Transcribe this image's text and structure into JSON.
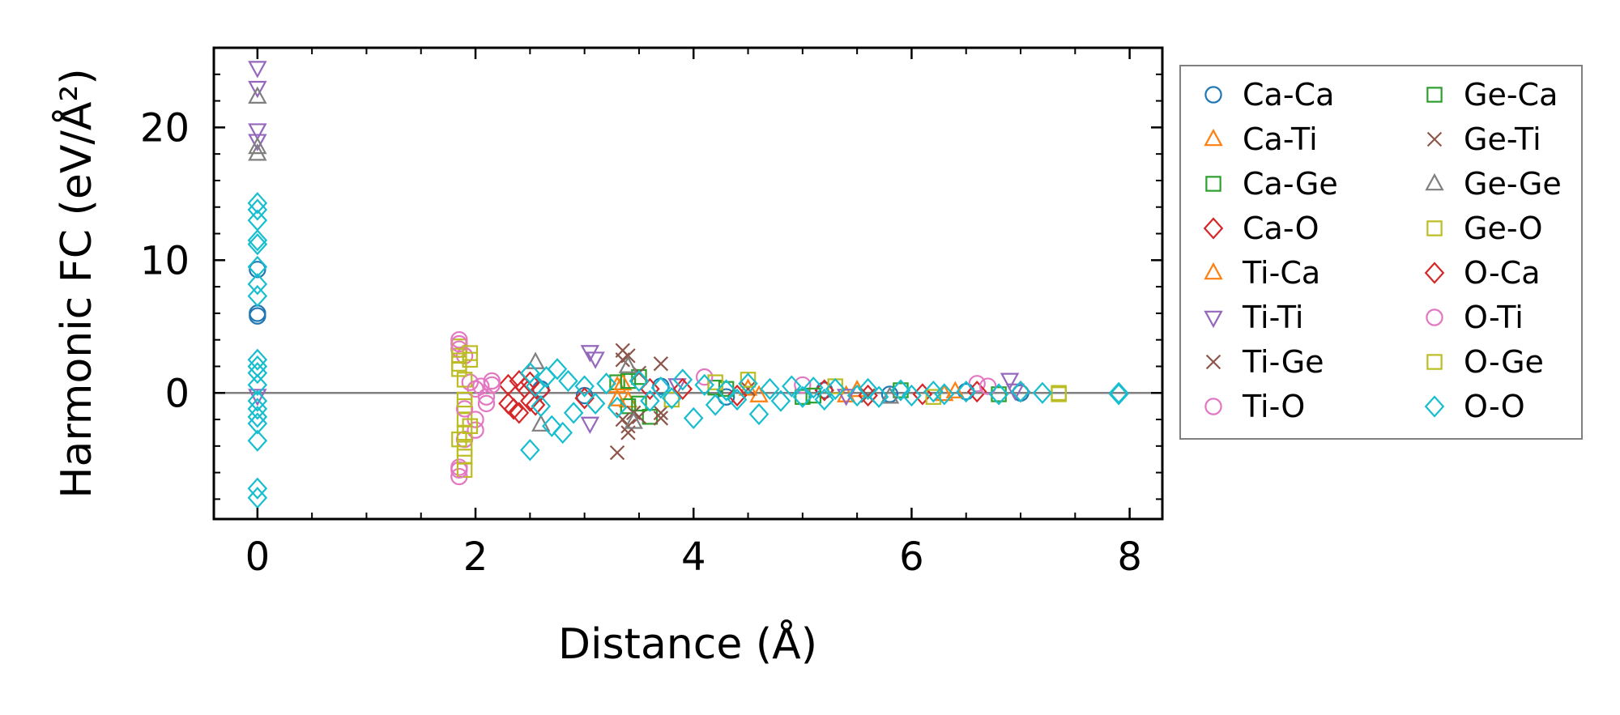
{
  "chart_data": {
    "type": "scatter",
    "title": "",
    "xlabel": "Distance (Å)",
    "ylabel": "Harmonic FC (eV/Å²)",
    "xlim": [
      -0.4,
      8.3
    ],
    "ylim": [
      -9.5,
      26
    ],
    "xticks": [
      0,
      2,
      4,
      6,
      8
    ],
    "xtick_labels": [
      "0",
      "2",
      "4",
      "6",
      "8"
    ],
    "yticks": [
      0,
      10,
      20
    ],
    "ytick_labels": [
      "0",
      "10",
      "20"
    ],
    "grid": false,
    "reference_line_y": 0,
    "legend_position": "outside-right",
    "series": [
      {
        "name": "Ca-Ca",
        "marker": "circle",
        "color": "#1f77b4",
        "points": [
          [
            0,
            9.3
          ],
          [
            0,
            6.0
          ],
          [
            0,
            5.8
          ],
          [
            2.6,
            0.3
          ],
          [
            3.0,
            -0.2
          ],
          [
            3.7,
            0.5
          ],
          [
            4.3,
            -0.3
          ],
          [
            5.2,
            0.2
          ],
          [
            5.8,
            -0.1
          ],
          [
            6.5,
            0.1
          ],
          [
            7.0,
            0.0
          ]
        ]
      },
      {
        "name": "Ca-Ti",
        "marker": "triangle-up",
        "color": "#ff7f0e",
        "points": [
          [
            3.3,
            0.5
          ],
          [
            3.4,
            -0.6
          ],
          [
            4.5,
            0.3
          ],
          [
            5.4,
            -0.2
          ],
          [
            6.4,
            0.1
          ]
        ]
      },
      {
        "name": "Ca-Ge",
        "marker": "square",
        "color": "#2ca02c",
        "points": [
          [
            3.3,
            0.8
          ],
          [
            3.4,
            -1.0
          ],
          [
            3.5,
            1.2
          ],
          [
            3.6,
            -1.8
          ],
          [
            4.2,
            0.4
          ],
          [
            5.0,
            -0.3
          ],
          [
            5.9,
            0.2
          ],
          [
            6.8,
            -0.1
          ]
        ]
      },
      {
        "name": "Ca-O",
        "marker": "diamond",
        "color": "#d62728",
        "points": [
          [
            2.3,
            0.6
          ],
          [
            2.35,
            -1.2
          ],
          [
            2.4,
            -1.5
          ],
          [
            2.45,
            0.4
          ],
          [
            2.5,
            0.8
          ],
          [
            2.55,
            -0.9
          ],
          [
            2.6,
            0.2
          ],
          [
            3.0,
            -0.4
          ],
          [
            3.6,
            0.3
          ],
          [
            4.4,
            -0.2
          ],
          [
            5.2,
            0.2
          ],
          [
            6.1,
            -0.1
          ],
          [
            7.0,
            0.1
          ]
        ]
      },
      {
        "name": "Ti-Ca",
        "marker": "triangle-up",
        "color": "#ff7f0e",
        "points": [
          [
            3.3,
            -0.5
          ],
          [
            3.35,
            0.7
          ],
          [
            4.6,
            -0.2
          ],
          [
            5.5,
            0.2
          ],
          [
            6.3,
            -0.1
          ]
        ]
      },
      {
        "name": "Ti-Ti",
        "marker": "triangle-down",
        "color": "#9467bd",
        "points": [
          [
            0,
            24.5
          ],
          [
            0,
            23.0
          ],
          [
            0,
            19.8
          ],
          [
            0,
            19.0
          ],
          [
            0,
            -0.2
          ],
          [
            3.05,
            3.1
          ],
          [
            3.1,
            2.6
          ],
          [
            3.05,
            -2.3
          ],
          [
            3.85,
            0.6
          ],
          [
            5.4,
            -0.2
          ],
          [
            6.9,
            1.0
          ],
          [
            6.95,
            0.2
          ]
        ]
      },
      {
        "name": "Ti-Ge",
        "marker": "cross",
        "color": "#8c564b",
        "points": [
          [
            3.3,
            -4.5
          ],
          [
            3.35,
            3.2
          ],
          [
            3.4,
            2.8
          ],
          [
            3.35,
            -2.0
          ],
          [
            3.4,
            -3.0
          ],
          [
            3.5,
            1.5
          ],
          [
            3.5,
            -1.8
          ],
          [
            3.7,
            2.2
          ],
          [
            3.7,
            -1.9
          ],
          [
            4.5,
            0.3
          ],
          [
            5.6,
            -0.2
          ]
        ]
      },
      {
        "name": "Ti-O",
        "marker": "circle",
        "color": "#e377c2",
        "points": [
          [
            1.85,
            4.0
          ],
          [
            1.85,
            3.3
          ],
          [
            1.85,
            -6.3
          ],
          [
            1.85,
            -5.6
          ],
          [
            1.9,
            2.8
          ],
          [
            1.9,
            -3.5
          ],
          [
            1.95,
            0.8
          ],
          [
            2.0,
            -2.0
          ],
          [
            2.0,
            -2.8
          ],
          [
            2.05,
            0.5
          ],
          [
            2.1,
            -0.3
          ],
          [
            2.15,
            0.9
          ],
          [
            4.1,
            1.2
          ],
          [
            5.0,
            0.6
          ],
          [
            6.6,
            0.7
          ]
        ]
      },
      {
        "name": "Ge-Ca",
        "marker": "square",
        "color": "#2ca02c",
        "points": [
          [
            3.4,
            0.9
          ],
          [
            3.5,
            -0.8
          ],
          [
            4.3,
            0.3
          ],
          [
            5.1,
            -0.2
          ]
        ]
      },
      {
        "name": "Ge-Ti",
        "marker": "cross",
        "color": "#8c564b",
        "points": [
          [
            3.35,
            2.5
          ],
          [
            3.4,
            -2.5
          ],
          [
            3.45,
            -1.5
          ],
          [
            3.7,
            -1.5
          ]
        ]
      },
      {
        "name": "Ge-Ge",
        "marker": "triangle-up",
        "color": "#7f7f7f",
        "points": [
          [
            0,
            22.3
          ],
          [
            0,
            18.5
          ],
          [
            0,
            18.0
          ],
          [
            2.55,
            2.3
          ],
          [
            2.6,
            -2.4
          ],
          [
            3.4,
            2.0
          ],
          [
            3.45,
            -2.2
          ],
          [
            5.8,
            -0.3
          ]
        ]
      },
      {
        "name": "Ge-O",
        "marker": "square",
        "color": "#bcbd22",
        "points": [
          [
            1.85,
            3.5
          ],
          [
            1.85,
            2.8
          ],
          [
            1.85,
            1.8
          ],
          [
            1.9,
            1.0
          ],
          [
            1.9,
            -1.0
          ],
          [
            1.9,
            -2.0
          ],
          [
            1.9,
            -3.0
          ],
          [
            1.85,
            -3.5
          ],
          [
            1.9,
            -4.2
          ],
          [
            1.9,
            -5.8
          ],
          [
            1.95,
            2.5
          ],
          [
            3.8,
            -0.5
          ],
          [
            4.5,
            1.0
          ],
          [
            5.3,
            0.5
          ],
          [
            6.2,
            -0.3
          ],
          [
            7.35,
            0.0
          ]
        ]
      },
      {
        "name": "O-Ca",
        "marker": "diamond",
        "color": "#d62728",
        "points": [
          [
            2.3,
            -0.8
          ],
          [
            2.4,
            0.9
          ],
          [
            2.5,
            -0.6
          ],
          [
            3.9,
            0.3
          ],
          [
            5.6,
            -0.2
          ],
          [
            6.6,
            0.1
          ]
        ]
      },
      {
        "name": "O-Ti",
        "marker": "circle",
        "color": "#e377c2",
        "points": [
          [
            1.85,
            3.7
          ],
          [
            1.85,
            -5.8
          ],
          [
            1.9,
            -1.2
          ],
          [
            2.0,
            0.3
          ],
          [
            2.1,
            -0.8
          ],
          [
            2.15,
            0.6
          ],
          [
            6.7,
            0.5
          ]
        ]
      },
      {
        "name": "O-Ge",
        "marker": "square",
        "color": "#bcbd22",
        "points": [
          [
            1.85,
            2.2
          ],
          [
            1.9,
            -0.5
          ],
          [
            1.9,
            -4.8
          ],
          [
            1.95,
            3.0
          ],
          [
            1.95,
            -2.5
          ],
          [
            4.2,
            0.8
          ],
          [
            7.35,
            -0.1
          ]
        ]
      },
      {
        "name": "O-O",
        "marker": "diamond",
        "color": "#17becf",
        "points": [
          [
            0,
            14.3
          ],
          [
            0,
            13.8
          ],
          [
            0,
            13.0
          ],
          [
            0,
            11.5
          ],
          [
            0,
            11.2
          ],
          [
            0,
            9.5
          ],
          [
            0,
            8.2
          ],
          [
            0,
            7.3
          ],
          [
            0,
            2.5
          ],
          [
            0,
            2.0
          ],
          [
            0,
            1.5
          ],
          [
            0,
            0.6
          ],
          [
            0,
            -0.6
          ],
          [
            0,
            -1.2
          ],
          [
            0,
            -1.8
          ],
          [
            0,
            -2.3
          ],
          [
            0,
            -3.6
          ],
          [
            0,
            -7.2
          ],
          [
            0,
            -7.9
          ],
          [
            2.5,
            -4.3
          ],
          [
            2.5,
            1.5
          ],
          [
            2.55,
            0.5
          ],
          [
            2.6,
            -1.0
          ],
          [
            2.65,
            1.2
          ],
          [
            2.7,
            -2.5
          ],
          [
            2.75,
            1.8
          ],
          [
            2.8,
            -3.0
          ],
          [
            2.85,
            0.9
          ],
          [
            2.9,
            -1.5
          ],
          [
            3.0,
            0.5
          ],
          [
            3.1,
            -0.8
          ],
          [
            3.2,
            0.7
          ],
          [
            3.3,
            -1.1
          ],
          [
            3.5,
            0.9
          ],
          [
            3.6,
            -0.6
          ],
          [
            3.7,
            0.4
          ],
          [
            3.8,
            -0.4
          ],
          [
            3.9,
            1.0
          ],
          [
            4.0,
            -1.9
          ],
          [
            4.1,
            0.6
          ],
          [
            4.2,
            -0.9
          ],
          [
            4.3,
            0.2
          ],
          [
            4.4,
            -0.5
          ],
          [
            4.5,
            0.7
          ],
          [
            4.6,
            -1.6
          ],
          [
            4.7,
            0.3
          ],
          [
            4.8,
            -0.6
          ],
          [
            4.9,
            0.5
          ],
          [
            5.0,
            -0.3
          ],
          [
            5.1,
            0.4
          ],
          [
            5.2,
            -0.5
          ],
          [
            5.3,
            0.3
          ],
          [
            5.5,
            -0.2
          ],
          [
            5.6,
            0.3
          ],
          [
            5.7,
            -0.3
          ],
          [
            5.9,
            0.2
          ],
          [
            6.0,
            -0.2
          ],
          [
            6.2,
            0.1
          ],
          [
            6.3,
            -0.1
          ],
          [
            6.5,
            0.1
          ],
          [
            6.8,
            -0.1
          ],
          [
            7.0,
            0.1
          ],
          [
            7.2,
            0.0
          ],
          [
            7.9,
            0.0
          ],
          [
            7.9,
            -0.1
          ]
        ]
      }
    ]
  }
}
